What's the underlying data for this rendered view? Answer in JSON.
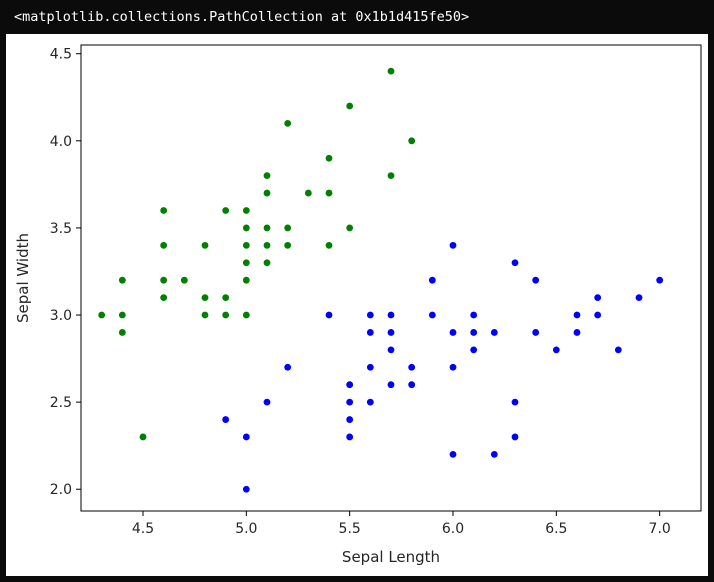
{
  "output": {
    "header_text": "<matplotlib.collections.PathCollection at 0x1b1d415fe50>"
  },
  "chart_data": {
    "type": "scatter",
    "title": "",
    "xlabel": "Sepal Length",
    "ylabel": "Sepal Width",
    "xlim": [
      4.2,
      7.2
    ],
    "ylim": [
      1.875,
      4.55
    ],
    "xticks": [
      "4.5",
      "5.0",
      "5.5",
      "6.0",
      "6.5",
      "7.0"
    ],
    "yticks": [
      "2.0",
      "2.5",
      "3.0",
      "3.5",
      "4.0",
      "4.5"
    ],
    "grid": false,
    "legend": false,
    "series": [
      {
        "color": "#008000",
        "points": [
          [
            4.3,
            3.0
          ],
          [
            4.4,
            3.2
          ],
          [
            4.4,
            3.0
          ],
          [
            4.4,
            2.9
          ],
          [
            4.5,
            2.3
          ],
          [
            4.6,
            3.6
          ],
          [
            4.6,
            3.4
          ],
          [
            4.6,
            3.2
          ],
          [
            4.6,
            3.1
          ],
          [
            4.7,
            3.2
          ],
          [
            4.8,
            3.4
          ],
          [
            4.8,
            3.1
          ],
          [
            4.8,
            3.0
          ],
          [
            4.9,
            3.6
          ],
          [
            4.9,
            3.1
          ],
          [
            4.9,
            3.0
          ],
          [
            5.0,
            3.6
          ],
          [
            5.0,
            3.5
          ],
          [
            5.0,
            3.4
          ],
          [
            5.0,
            3.3
          ],
          [
            5.0,
            3.2
          ],
          [
            5.0,
            3.0
          ],
          [
            5.1,
            3.8
          ],
          [
            5.1,
            3.7
          ],
          [
            5.1,
            3.5
          ],
          [
            5.1,
            3.4
          ],
          [
            5.1,
            3.3
          ],
          [
            5.2,
            4.1
          ],
          [
            5.2,
            3.5
          ],
          [
            5.2,
            3.4
          ],
          [
            5.3,
            3.7
          ],
          [
            5.4,
            3.9
          ],
          [
            5.4,
            3.7
          ],
          [
            5.4,
            3.4
          ],
          [
            5.5,
            4.2
          ],
          [
            5.5,
            3.5
          ],
          [
            5.7,
            4.4
          ],
          [
            5.7,
            3.8
          ],
          [
            5.8,
            4.0
          ]
        ]
      },
      {
        "color": "#0000ff",
        "points": [
          [
            4.9,
            2.4
          ],
          [
            5.0,
            2.3
          ],
          [
            5.0,
            2.0
          ],
          [
            5.1,
            2.5
          ],
          [
            5.2,
            2.7
          ],
          [
            5.4,
            3.0
          ],
          [
            5.5,
            2.6
          ],
          [
            5.5,
            2.5
          ],
          [
            5.5,
            2.4
          ],
          [
            5.5,
            2.3
          ],
          [
            5.6,
            3.0
          ],
          [
            5.6,
            2.9
          ],
          [
            5.6,
            2.7
          ],
          [
            5.6,
            2.5
          ],
          [
            5.7,
            3.0
          ],
          [
            5.7,
            2.9
          ],
          [
            5.7,
            2.8
          ],
          [
            5.7,
            2.6
          ],
          [
            5.8,
            2.7
          ],
          [
            5.8,
            2.6
          ],
          [
            5.9,
            3.2
          ],
          [
            5.9,
            3.0
          ],
          [
            6.0,
            3.4
          ],
          [
            6.0,
            2.9
          ],
          [
            6.0,
            2.7
          ],
          [
            6.0,
            2.2
          ],
          [
            6.1,
            3.0
          ],
          [
            6.1,
            2.9
          ],
          [
            6.1,
            2.8
          ],
          [
            6.2,
            2.9
          ],
          [
            6.2,
            2.2
          ],
          [
            6.3,
            3.3
          ],
          [
            6.3,
            2.5
          ],
          [
            6.3,
            2.3
          ],
          [
            6.4,
            3.2
          ],
          [
            6.4,
            2.9
          ],
          [
            6.5,
            2.8
          ],
          [
            6.6,
            3.0
          ],
          [
            6.6,
            2.9
          ],
          [
            6.7,
            3.1
          ],
          [
            6.7,
            3.0
          ],
          [
            6.8,
            2.8
          ],
          [
            6.9,
            3.1
          ],
          [
            7.0,
            3.2
          ]
        ]
      }
    ]
  }
}
